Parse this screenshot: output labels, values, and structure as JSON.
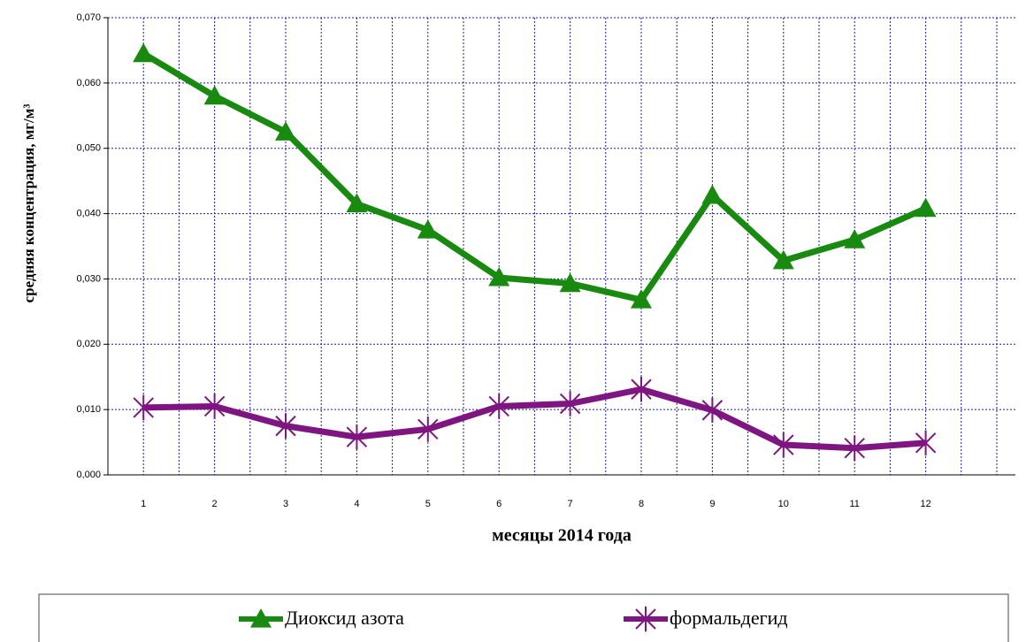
{
  "chart_data": {
    "type": "line",
    "ylabel": "средняя концентрация, мг/м³",
    "xlabel": "месяцы  2014 года",
    "categories": [
      "1",
      "2",
      "3",
      "4",
      "5",
      "6",
      "7",
      "8",
      "9",
      "10",
      "11",
      "12"
    ],
    "series": [
      {
        "name": "Диоксид азота",
        "color": "#188a10",
        "marker": "triangle",
        "values": [
          0.0645,
          0.058,
          0.0525,
          0.0415,
          0.0375,
          0.0302,
          0.0293,
          0.0268,
          0.0428,
          0.0328,
          0.036,
          0.0408
        ]
      },
      {
        "name": "формальдегид",
        "color": "#7e1580",
        "marker": "star",
        "values": [
          0.0103,
          0.0105,
          0.0075,
          0.0058,
          0.007,
          0.0105,
          0.0109,
          0.0131,
          0.0099,
          0.0046,
          0.0041,
          0.0049
        ]
      }
    ],
    "ylim": [
      0,
      0.07
    ],
    "yticks": [
      {
        "value": 0,
        "label": "0,000"
      },
      {
        "value": 0.01,
        "label": "0,010"
      },
      {
        "value": 0.02,
        "label": "0,020"
      },
      {
        "value": 0.03,
        "label": "0,030"
      },
      {
        "value": 0.04,
        "label": "0,040"
      },
      {
        "value": 0.05,
        "label": "0,050"
      },
      {
        "value": 0.06,
        "label": "0,060"
      },
      {
        "value": 0.07,
        "label": "0,070"
      }
    ],
    "grid": true,
    "legend": "bottom"
  }
}
